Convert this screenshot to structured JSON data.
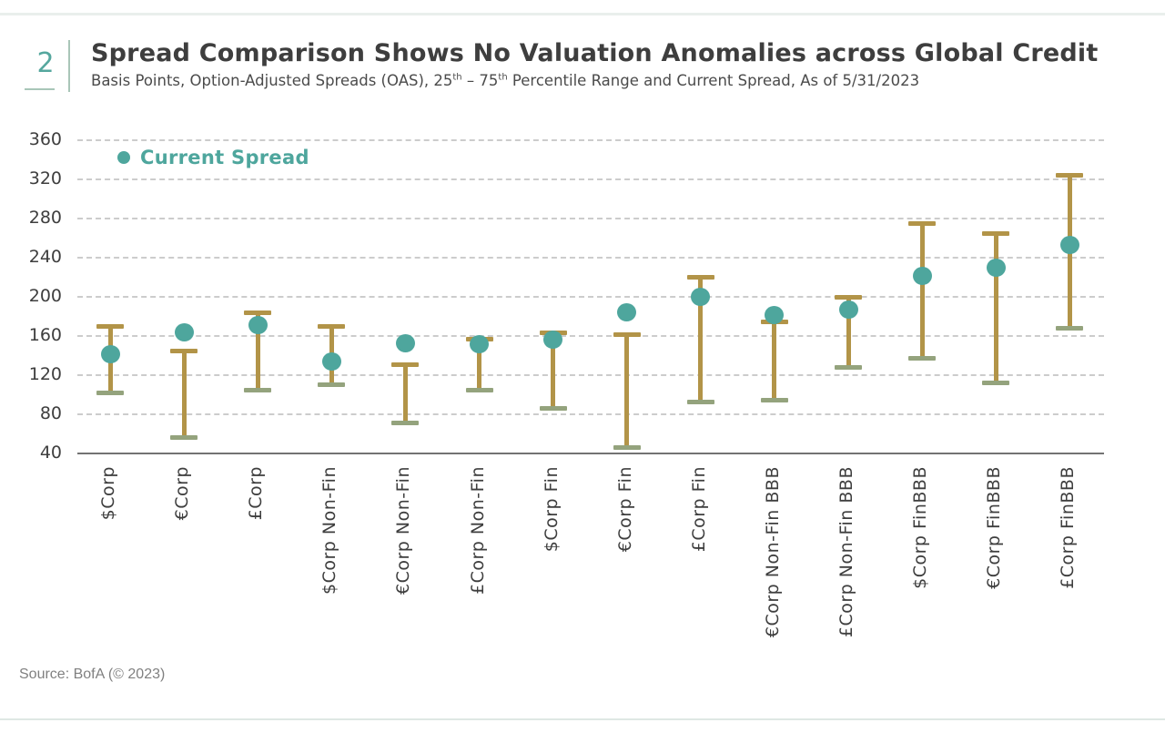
{
  "page": {
    "exhibit_number": "2",
    "title": "Spread Comparison Shows No Valuation Anomalies across Global Credit",
    "subtitle_part1": "Basis Points, Option-Adjusted Spreads (OAS), 25",
    "subtitle_sup1": "th",
    "subtitle_part2": " – 75",
    "subtitle_sup2": "th",
    "subtitle_part3": " Percentile Range and Current Spread, As of 5/31/2023",
    "source": "Source: BofA (© 2023)"
  },
  "colors": {
    "teal": "#4ea69d",
    "gold": "#b29448",
    "sage_low_cap": "#94a37d",
    "gridline": "#cccccc",
    "axis": "#737373",
    "title_text": "#3e3e3e",
    "rule": "#e9efec"
  },
  "chart_data": {
    "type": "scatter",
    "subtype": "percentile-range-with-current-dot",
    "title": "Spread Comparison Shows No Valuation Anomalies across Global Credit",
    "ylabel": "Basis Points (OAS)",
    "ylim": [
      40,
      360
    ],
    "yticks": [
      40,
      80,
      120,
      160,
      200,
      240,
      280,
      320,
      360
    ],
    "grid": "dashed-horizontal",
    "legend": {
      "label": "Current Spread",
      "position": "top-left-inside"
    },
    "categories": [
      "$Corp",
      "€Corp",
      "£Corp",
      "$Corp Non-Fin",
      "€Corp Non-Fin",
      "£Corp Non-Fin",
      "$Corp Fin",
      "€Corp Fin",
      "£Corp Fin",
      "€Corp Non-Fin BBB",
      "£Corp Non-Fin BBB",
      "$Corp FinBBB",
      "€Corp FinBBB",
      "£Corp FinBBB"
    ],
    "series": [
      {
        "name": "25th Percentile",
        "role": "range-low",
        "values": [
          102,
          56,
          105,
          110,
          71,
          105,
          86,
          46,
          93,
          94,
          128,
          137,
          112,
          168
        ]
      },
      {
        "name": "75th Percentile",
        "role": "range-high",
        "values": [
          170,
          145,
          184,
          170,
          131,
          157,
          163,
          161,
          220,
          174,
          200,
          275,
          265,
          324
        ]
      },
      {
        "name": "Current Spread",
        "role": "dot",
        "values": [
          141,
          164,
          171,
          134,
          153,
          152,
          156,
          184,
          200,
          181,
          187,
          221,
          230,
          253
        ]
      }
    ]
  }
}
